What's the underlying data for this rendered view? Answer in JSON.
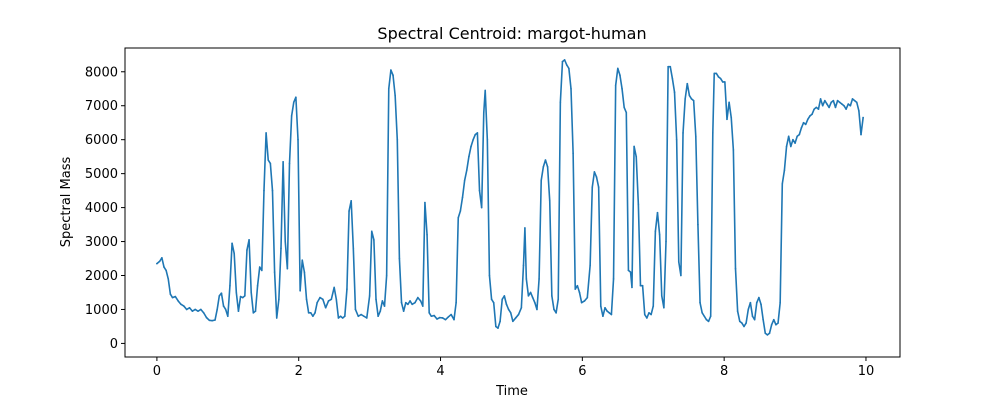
{
  "chart_data": {
    "type": "line",
    "title": "Spectral Centroid: margot-human",
    "xlabel": "Time",
    "ylabel": "Spectral Mass",
    "xlim": [
      -0.45,
      10.48
    ],
    "ylim": [
      -400,
      8700
    ],
    "xticks": [
      0,
      2,
      4,
      6,
      8,
      10
    ],
    "yticks": [
      0,
      1000,
      2000,
      3000,
      4000,
      5000,
      6000,
      7000,
      8000
    ],
    "grid": false,
    "line_color": "#1f77b4",
    "series": [
      {
        "points": [
          [
            0.0,
            2350
          ],
          [
            0.04,
            2420
          ],
          [
            0.07,
            2520
          ],
          [
            0.1,
            2250
          ],
          [
            0.13,
            2150
          ],
          [
            0.16,
            1900
          ],
          [
            0.19,
            1450
          ],
          [
            0.22,
            1350
          ],
          [
            0.26,
            1380
          ],
          [
            0.3,
            1250
          ],
          [
            0.34,
            1150
          ],
          [
            0.38,
            1100
          ],
          [
            0.42,
            1000
          ],
          [
            0.46,
            1050
          ],
          [
            0.5,
            950
          ],
          [
            0.54,
            1000
          ],
          [
            0.58,
            950
          ],
          [
            0.62,
            1000
          ],
          [
            0.66,
            900
          ],
          [
            0.7,
            760
          ],
          [
            0.74,
            680
          ],
          [
            0.78,
            670
          ],
          [
            0.82,
            690
          ],
          [
            0.85,
            1000
          ],
          [
            0.88,
            1400
          ],
          [
            0.91,
            1480
          ],
          [
            0.94,
            1100
          ],
          [
            0.97,
            1000
          ],
          [
            1.0,
            800
          ],
          [
            1.03,
            1700
          ],
          [
            1.06,
            2950
          ],
          [
            1.09,
            2650
          ],
          [
            1.12,
            1500
          ],
          [
            1.15,
            950
          ],
          [
            1.18,
            1380
          ],
          [
            1.21,
            1350
          ],
          [
            1.24,
            1400
          ],
          [
            1.27,
            2750
          ],
          [
            1.3,
            3050
          ],
          [
            1.33,
            1500
          ],
          [
            1.36,
            900
          ],
          [
            1.39,
            950
          ],
          [
            1.42,
            1700
          ],
          [
            1.45,
            2250
          ],
          [
            1.48,
            2150
          ],
          [
            1.51,
            4500
          ],
          [
            1.54,
            6200
          ],
          [
            1.57,
            5400
          ],
          [
            1.6,
            5300
          ],
          [
            1.63,
            4500
          ],
          [
            1.66,
            2100
          ],
          [
            1.69,
            750
          ],
          [
            1.72,
            1300
          ],
          [
            1.75,
            2800
          ],
          [
            1.78,
            5350
          ],
          [
            1.81,
            3000
          ],
          [
            1.84,
            2200
          ],
          [
            1.87,
            5300
          ],
          [
            1.9,
            6700
          ],
          [
            1.93,
            7100
          ],
          [
            1.96,
            7250
          ],
          [
            1.99,
            6000
          ],
          [
            2.02,
            1550
          ],
          [
            2.05,
            2450
          ],
          [
            2.08,
            2100
          ],
          [
            2.11,
            1300
          ],
          [
            2.14,
            900
          ],
          [
            2.17,
            900
          ],
          [
            2.2,
            800
          ],
          [
            2.23,
            900
          ],
          [
            2.26,
            1200
          ],
          [
            2.3,
            1350
          ],
          [
            2.34,
            1300
          ],
          [
            2.38,
            1050
          ],
          [
            2.42,
            1250
          ],
          [
            2.46,
            1300
          ],
          [
            2.5,
            1650
          ],
          [
            2.53,
            1300
          ],
          [
            2.56,
            750
          ],
          [
            2.59,
            800
          ],
          [
            2.62,
            750
          ],
          [
            2.65,
            800
          ],
          [
            2.68,
            1600
          ],
          [
            2.71,
            3900
          ],
          [
            2.74,
            4200
          ],
          [
            2.77,
            2800
          ],
          [
            2.8,
            1000
          ],
          [
            2.84,
            800
          ],
          [
            2.88,
            850
          ],
          [
            2.92,
            800
          ],
          [
            2.96,
            750
          ],
          [
            3.0,
            1400
          ],
          [
            3.03,
            3300
          ],
          [
            3.06,
            3050
          ],
          [
            3.09,
            1300
          ],
          [
            3.12,
            800
          ],
          [
            3.15,
            950
          ],
          [
            3.18,
            1250
          ],
          [
            3.21,
            1100
          ],
          [
            3.24,
            2000
          ],
          [
            3.27,
            7500
          ],
          [
            3.3,
            8050
          ],
          [
            3.33,
            7900
          ],
          [
            3.36,
            7300
          ],
          [
            3.39,
            6000
          ],
          [
            3.42,
            2500
          ],
          [
            3.45,
            1200
          ],
          [
            3.48,
            950
          ],
          [
            3.51,
            1200
          ],
          [
            3.54,
            1150
          ],
          [
            3.57,
            1250
          ],
          [
            3.6,
            1150
          ],
          [
            3.64,
            1200
          ],
          [
            3.68,
            1350
          ],
          [
            3.72,
            1250
          ],
          [
            3.75,
            1100
          ],
          [
            3.78,
            4150
          ],
          [
            3.81,
            3200
          ],
          [
            3.84,
            900
          ],
          [
            3.87,
            800
          ],
          [
            3.91,
            820
          ],
          [
            3.95,
            720
          ],
          [
            3.99,
            760
          ],
          [
            4.03,
            750
          ],
          [
            4.07,
            700
          ],
          [
            4.11,
            780
          ],
          [
            4.15,
            850
          ],
          [
            4.19,
            700
          ],
          [
            4.22,
            1200
          ],
          [
            4.25,
            3700
          ],
          [
            4.28,
            3900
          ],
          [
            4.31,
            4300
          ],
          [
            4.34,
            4800
          ],
          [
            4.37,
            5100
          ],
          [
            4.4,
            5500
          ],
          [
            4.43,
            5800
          ],
          [
            4.46,
            6000
          ],
          [
            4.49,
            6150
          ],
          [
            4.52,
            6200
          ],
          [
            4.55,
            4500
          ],
          [
            4.58,
            4000
          ],
          [
            4.61,
            6800
          ],
          [
            4.63,
            7450
          ],
          [
            4.66,
            6000
          ],
          [
            4.69,
            2000
          ],
          [
            4.72,
            1300
          ],
          [
            4.75,
            1200
          ],
          [
            4.78,
            500
          ],
          [
            4.81,
            450
          ],
          [
            4.84,
            650
          ],
          [
            4.87,
            1300
          ],
          [
            4.9,
            1400
          ],
          [
            4.93,
            1150
          ],
          [
            4.96,
            1000
          ],
          [
            4.99,
            900
          ],
          [
            5.02,
            650
          ],
          [
            5.06,
            750
          ],
          [
            5.1,
            850
          ],
          [
            5.14,
            1050
          ],
          [
            5.17,
            2300
          ],
          [
            5.19,
            3400
          ],
          [
            5.21,
            1900
          ],
          [
            5.24,
            1400
          ],
          [
            5.27,
            1500
          ],
          [
            5.3,
            1350
          ],
          [
            5.33,
            1200
          ],
          [
            5.36,
            1000
          ],
          [
            5.39,
            1900
          ],
          [
            5.42,
            4800
          ],
          [
            5.45,
            5200
          ],
          [
            5.48,
            5400
          ],
          [
            5.51,
            5200
          ],
          [
            5.54,
            4200
          ],
          [
            5.57,
            1400
          ],
          [
            5.6,
            1000
          ],
          [
            5.63,
            900
          ],
          [
            5.66,
            1300
          ],
          [
            5.69,
            7100
          ],
          [
            5.72,
            8300
          ],
          [
            5.75,
            8350
          ],
          [
            5.78,
            8200
          ],
          [
            5.81,
            8100
          ],
          [
            5.84,
            7500
          ],
          [
            5.87,
            5600
          ],
          [
            5.9,
            1600
          ],
          [
            5.93,
            1700
          ],
          [
            5.96,
            1500
          ],
          [
            5.99,
            1200
          ],
          [
            6.03,
            1250
          ],
          [
            6.07,
            1350
          ],
          [
            6.11,
            2300
          ],
          [
            6.14,
            4600
          ],
          [
            6.17,
            5050
          ],
          [
            6.2,
            4900
          ],
          [
            6.23,
            4600
          ],
          [
            6.26,
            1100
          ],
          [
            6.29,
            800
          ],
          [
            6.32,
            1050
          ],
          [
            6.35,
            950
          ],
          [
            6.38,
            900
          ],
          [
            6.41,
            850
          ],
          [
            6.44,
            1900
          ],
          [
            6.47,
            7600
          ],
          [
            6.5,
            8100
          ],
          [
            6.53,
            7900
          ],
          [
            6.56,
            7500
          ],
          [
            6.59,
            6950
          ],
          [
            6.62,
            6800
          ],
          [
            6.65,
            2150
          ],
          [
            6.68,
            2100
          ],
          [
            6.7,
            1650
          ],
          [
            6.73,
            5800
          ],
          [
            6.76,
            5500
          ],
          [
            6.79,
            4100
          ],
          [
            6.82,
            1700
          ],
          [
            6.85,
            1700
          ],
          [
            6.88,
            850
          ],
          [
            6.91,
            750
          ],
          [
            6.94,
            900
          ],
          [
            6.97,
            850
          ],
          [
            7.0,
            1100
          ],
          [
            7.03,
            3300
          ],
          [
            7.06,
            3850
          ],
          [
            7.09,
            3200
          ],
          [
            7.12,
            1400
          ],
          [
            7.15,
            1050
          ],
          [
            7.18,
            3000
          ],
          [
            7.21,
            8150
          ],
          [
            7.24,
            8150
          ],
          [
            7.27,
            7800
          ],
          [
            7.3,
            7400
          ],
          [
            7.33,
            6000
          ],
          [
            7.36,
            2400
          ],
          [
            7.39,
            2000
          ],
          [
            7.42,
            6200
          ],
          [
            7.45,
            7200
          ],
          [
            7.48,
            7650
          ],
          [
            7.51,
            7300
          ],
          [
            7.54,
            7200
          ],
          [
            7.57,
            7150
          ],
          [
            7.6,
            6100
          ],
          [
            7.63,
            3500
          ],
          [
            7.66,
            1200
          ],
          [
            7.69,
            900
          ],
          [
            7.72,
            800
          ],
          [
            7.75,
            700
          ],
          [
            7.78,
            650
          ],
          [
            7.81,
            800
          ],
          [
            7.84,
            6200
          ],
          [
            7.86,
            7950
          ],
          [
            7.89,
            7950
          ],
          [
            7.92,
            7850
          ],
          [
            7.95,
            7800
          ],
          [
            7.98,
            7700
          ],
          [
            8.01,
            7700
          ],
          [
            8.04,
            6600
          ],
          [
            8.07,
            7100
          ],
          [
            8.1,
            6650
          ],
          [
            8.13,
            5700
          ],
          [
            8.16,
            2200
          ],
          [
            8.19,
            950
          ],
          [
            8.22,
            650
          ],
          [
            8.25,
            600
          ],
          [
            8.28,
            500
          ],
          [
            8.31,
            600
          ],
          [
            8.34,
            1000
          ],
          [
            8.37,
            1200
          ],
          [
            8.4,
            800
          ],
          [
            8.43,
            700
          ],
          [
            8.46,
            1200
          ],
          [
            8.49,
            1350
          ],
          [
            8.52,
            1150
          ],
          [
            8.55,
            700
          ],
          [
            8.58,
            300
          ],
          [
            8.61,
            250
          ],
          [
            8.64,
            300
          ],
          [
            8.67,
            550
          ],
          [
            8.7,
            700
          ],
          [
            8.73,
            550
          ],
          [
            8.76,
            600
          ],
          [
            8.79,
            1200
          ],
          [
            8.82,
            4700
          ],
          [
            8.85,
            5100
          ],
          [
            8.88,
            5800
          ],
          [
            8.91,
            6100
          ],
          [
            8.94,
            5800
          ],
          [
            8.97,
            6000
          ],
          [
            9.0,
            5900
          ],
          [
            9.03,
            6100
          ],
          [
            9.06,
            6150
          ],
          [
            9.09,
            6350
          ],
          [
            9.12,
            6500
          ],
          [
            9.15,
            6450
          ],
          [
            9.18,
            6600
          ],
          [
            9.21,
            6700
          ],
          [
            9.24,
            6750
          ],
          [
            9.27,
            6900
          ],
          [
            9.3,
            6950
          ],
          [
            9.33,
            6900
          ],
          [
            9.36,
            7200
          ],
          [
            9.39,
            7000
          ],
          [
            9.42,
            7150
          ],
          [
            9.45,
            7050
          ],
          [
            9.48,
            6950
          ],
          [
            9.51,
            7100
          ],
          [
            9.54,
            7150
          ],
          [
            9.57,
            6950
          ],
          [
            9.6,
            7150
          ],
          [
            9.63,
            7100
          ],
          [
            9.66,
            7050
          ],
          [
            9.69,
            7000
          ],
          [
            9.72,
            6900
          ],
          [
            9.75,
            7050
          ],
          [
            9.78,
            7000
          ],
          [
            9.81,
            7200
          ],
          [
            9.84,
            7150
          ],
          [
            9.87,
            7100
          ],
          [
            9.9,
            6850
          ],
          [
            9.93,
            6150
          ],
          [
            9.96,
            6650
          ]
        ]
      }
    ]
  }
}
